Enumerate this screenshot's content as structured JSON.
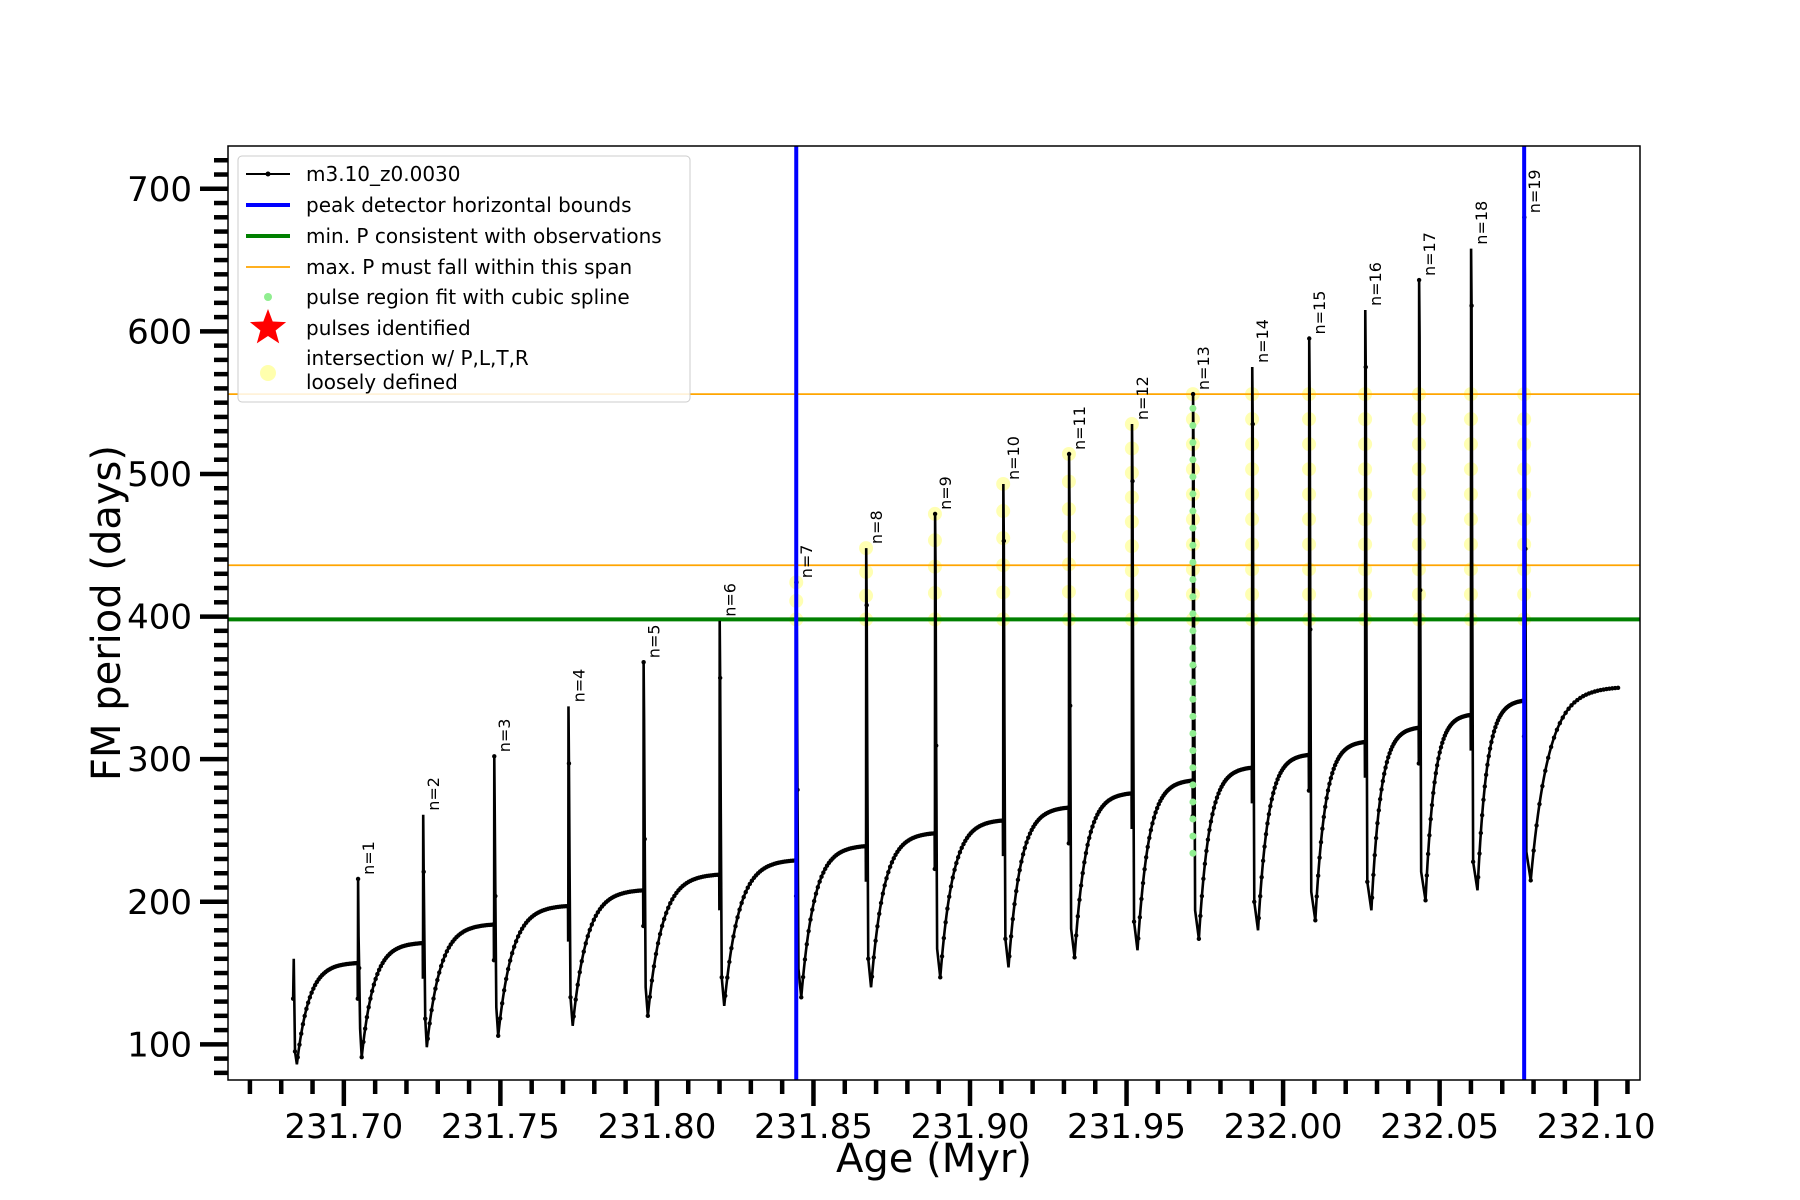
{
  "chart_data": {
    "type": "line",
    "title": "",
    "xlabel": "Age (Myr)",
    "ylabel": "FM period (days)",
    "xlim": [
      231.663,
      232.114
    ],
    "ylim": [
      75,
      730
    ],
    "x_ticks": [
      231.7,
      231.75,
      231.8,
      231.85,
      231.9,
      231.95,
      232.0,
      232.05,
      232.1
    ],
    "x_tick_labels": [
      "231.70",
      "231.75",
      "231.80",
      "231.85",
      "231.90",
      "231.95",
      "232.00",
      "232.05",
      "232.10"
    ],
    "y_ticks": [
      100,
      200,
      300,
      400,
      500,
      600,
      700
    ],
    "y_tick_labels": [
      "100",
      "200",
      "300",
      "400",
      "500",
      "600",
      "700"
    ],
    "grid": false,
    "legend_position": "top-left",
    "colors": {
      "series": "#000000",
      "bounds": "#0000ff",
      "min_p": "#008000",
      "max_p": "#ffa500",
      "spline": "#90ee90",
      "pulses": "#ff0000",
      "intersection": "#ffff99"
    },
    "legend": [
      {
        "label": "m3.10_z0.0030",
        "marker": "line-dot",
        "color": "#000000"
      },
      {
        "label": "peak detector horizontal bounds",
        "marker": "line-thick",
        "color": "#0000ff"
      },
      {
        "label": "min. P consistent with observations",
        "marker": "line-thick",
        "color": "#008000"
      },
      {
        "label": "max. P must fall within this span",
        "marker": "line-thin",
        "color": "#ffa500"
      },
      {
        "label": "pulse region fit with cubic spline",
        "marker": "dot",
        "color": "#90ee90"
      },
      {
        "label": "pulses identified",
        "marker": "star",
        "color": "#ff0000"
      },
      {
        "label": "intersection w/ P,L,T,R",
        "label2": "loosely defined",
        "marker": "circle",
        "color": "#ffff99"
      }
    ],
    "bounds_x": [
      231.8445,
      232.077
    ],
    "min_p": 398,
    "max_p_span": [
      436,
      556
    ],
    "series": [
      {
        "name": "m3.10_z0.0030",
        "start_x": 231.6838,
        "start_y": 132,
        "end_x": 232.107,
        "end_y": 350,
        "pulses": [
          {
            "n": "n=1",
            "x": 231.7045,
            "peak": 216,
            "pre": 157,
            "min": 91,
            "recovery": 0.0012
          },
          {
            "n": "n=2",
            "x": 231.7253,
            "peak": 261,
            "pre": 171,
            "min": 98,
            "recovery": 0.0012
          },
          {
            "n": "n=3",
            "x": 231.748,
            "peak": 302,
            "pre": 184,
            "min": 106,
            "recovery": 0.0013
          },
          {
            "n": "n=4",
            "x": 231.7717,
            "peak": 337,
            "pre": 197,
            "min": 113,
            "recovery": 0.0014
          },
          {
            "n": "n=5",
            "x": 231.7957,
            "peak": 368,
            "pre": 208,
            "min": 120,
            "recovery": 0.0014
          },
          {
            "n": "n=6",
            "x": 231.82,
            "peak": 397,
            "pre": 219,
            "min": 127,
            "recovery": 0.0015
          },
          {
            "n": "n=7",
            "x": 231.8445,
            "peak": 424,
            "pre": 229,
            "min": 133,
            "recovery": 0.0016
          },
          {
            "n": "n=8",
            "x": 231.8668,
            "peak": 448,
            "pre": 239,
            "min": 140,
            "recovery": 0.0016
          },
          {
            "n": "n=9",
            "x": 231.8888,
            "peak": 472,
            "pre": 248,
            "min": 147,
            "recovery": 0.0017
          },
          {
            "n": "n=10",
            "x": 231.9106,
            "peak": 493,
            "pre": 257,
            "min": 154,
            "recovery": 0.0017
          },
          {
            "n": "n=11",
            "x": 231.9316,
            "peak": 514,
            "pre": 266,
            "min": 161,
            "recovery": 0.0018
          },
          {
            "n": "n=12",
            "x": 231.9517,
            "peak": 535,
            "pre": 276,
            "min": 166,
            "recovery": 0.0018
          },
          {
            "n": "n=13",
            "x": 231.9712,
            "peak": 556,
            "pre": 285,
            "min": 174,
            "recovery": 0.0019
          },
          {
            "n": "n=14",
            "x": 231.9901,
            "peak": 575,
            "pre": 294,
            "min": 180,
            "recovery": 0.0019
          },
          {
            "n": "n=15",
            "x": 232.0083,
            "peak": 595,
            "pre": 303,
            "min": 187,
            "recovery": 0.002
          },
          {
            "n": "n=16",
            "x": 232.0262,
            "peak": 615,
            "pre": 312,
            "min": 194,
            "recovery": 0.002
          },
          {
            "n": "n=17",
            "x": 232.0434,
            "peak": 636,
            "pre": 322,
            "min": 201,
            "recovery": 0.0021
          },
          {
            "n": "n=18",
            "x": 232.06,
            "peak": 658,
            "pre": 331,
            "min": 208,
            "recovery": 0.0021
          },
          {
            "n": "n=19",
            "x": 232.077,
            "peak": 680,
            "pre": 341,
            "min": 215,
            "recovery": 0.0021
          }
        ]
      }
    ],
    "spline_fit_pulse": "n=13",
    "intersection_pulses": [
      "n=7",
      "n=8",
      "n=9",
      "n=10",
      "n=11",
      "n=12",
      "n=13",
      "n=14",
      "n=15",
      "n=16",
      "n=17",
      "n=18",
      "n=19"
    ]
  }
}
